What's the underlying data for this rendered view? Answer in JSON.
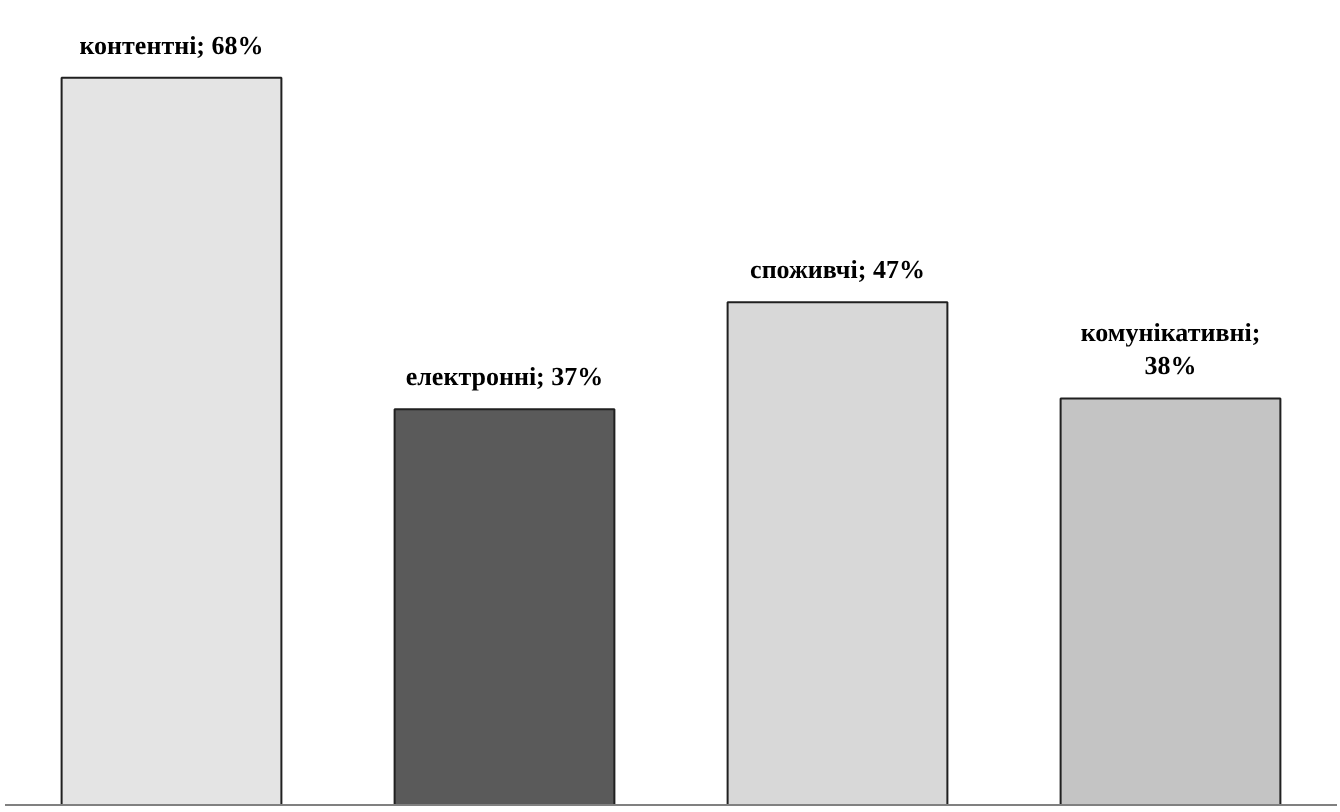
{
  "chart_data": {
    "type": "bar",
    "categories": [
      null,
      null,
      null,
      null
    ],
    "values": [
      68,
      37,
      47,
      38
    ],
    "colors": [
      "#e4e4e4",
      "#5a5a5a",
      "#d8d8d8",
      "#c4c4c4"
    ],
    "value_labels": [
      "контентні; 68%",
      "електронні; 37%",
      "споживчі; 47%",
      "комунікативні;\n38%"
    ]
  }
}
